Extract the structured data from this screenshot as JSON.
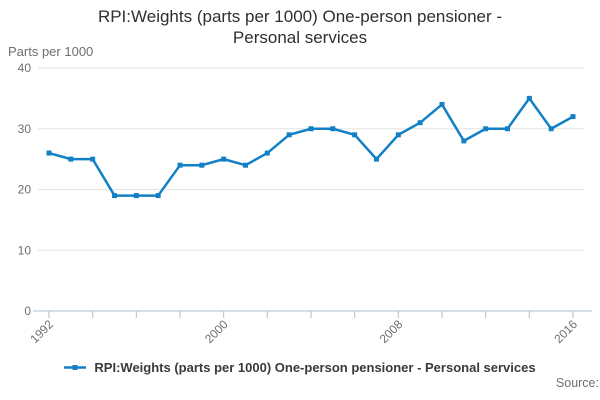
{
  "title": {
    "line1": "RPI:Weights (parts per 1000) One-person pensioner -",
    "line2": "Personal services",
    "full": "RPI:Weights (parts per 1000) One-person pensioner - Personal services"
  },
  "y_axis": {
    "unit_label": "Parts per 1000"
  },
  "legend": {
    "label": "RPI:Weights (parts per 1000) One-person pensioner - Personal services"
  },
  "source_label": "Source:",
  "colors": {
    "line": "#1380c6",
    "grid": "#e4e4e4",
    "axis": "#aebfcd",
    "muted_text": "#6f6f6f",
    "title_text": "#2f2f2f"
  },
  "chart_data": {
    "type": "line",
    "title": "RPI:Weights (parts per 1000) One-person pensioner - Personal services",
    "ylabel": "Parts per 1000",
    "series_name": "RPI:Weights (parts per 1000) One-person pensioner - Personal services",
    "x": [
      1992,
      1993,
      1994,
      1995,
      1996,
      1997,
      1998,
      1999,
      2000,
      2001,
      2002,
      2003,
      2004,
      2005,
      2006,
      2007,
      2008,
      2009,
      2010,
      2011,
      2012,
      2013,
      2014,
      2015,
      2016
    ],
    "values": [
      26,
      25,
      25,
      19,
      19,
      19,
      24,
      24,
      25,
      24,
      26,
      29,
      30,
      30,
      29,
      25,
      29,
      31,
      34,
      28,
      30,
      30,
      35,
      30,
      32
    ],
    "ylim": [
      0,
      40
    ],
    "yticks": [
      0,
      10,
      20,
      30,
      40
    ],
    "xticks_labeled": [
      1992,
      2000,
      2008,
      2016
    ],
    "xtick_step": 2,
    "grid": "horizontal",
    "legend_position": "bottom"
  }
}
